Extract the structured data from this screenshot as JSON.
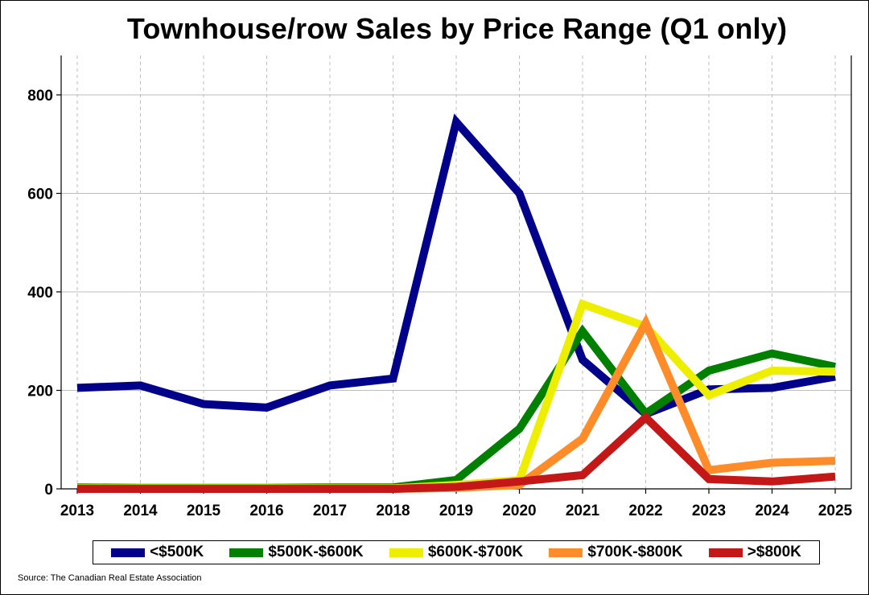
{
  "chart_data": {
    "type": "line",
    "title": "Townhouse/row Sales by Price Range (Q1 only)",
    "xlabel": "",
    "ylabel": "",
    "x": [
      "2013",
      "2014",
      "2015",
      "2016",
      "2017",
      "2018",
      "2019",
      "2020",
      "2021",
      "2022",
      "2023",
      "2024",
      "2025"
    ],
    "ylim": [
      0,
      800
    ],
    "yticks": [
      0,
      200,
      400,
      600,
      800
    ],
    "grid": true,
    "legend_position": "bottom",
    "series": [
      {
        "name": "<$500K",
        "color": "#00008b",
        "values": [
          205,
          210,
          172,
          165,
          210,
          224,
          745,
          600,
          262,
          152,
          202,
          205,
          228
        ]
      },
      {
        "name": "$500K-$600K",
        "color": "#008000",
        "values": [
          3,
          2,
          2,
          2,
          3,
          3,
          18,
          122,
          320,
          153,
          240,
          275,
          248
        ]
      },
      {
        "name": "$600K-$700K",
        "color": "#eeee00",
        "values": [
          1,
          1,
          1,
          1,
          1,
          1,
          8,
          18,
          375,
          330,
          190,
          240,
          238
        ]
      },
      {
        "name": "$700K-$800K",
        "color": "#ff8c28",
        "values": [
          0,
          0,
          0,
          0,
          0,
          0,
          2,
          8,
          102,
          337,
          38,
          53,
          57
        ]
      },
      {
        "name": ">$800K",
        "color": "#c41717",
        "values": [
          0,
          0,
          0,
          0,
          0,
          0,
          4,
          15,
          28,
          145,
          20,
          15,
          25
        ]
      }
    ],
    "source": "Source: The Canadian Real Estate Association"
  }
}
